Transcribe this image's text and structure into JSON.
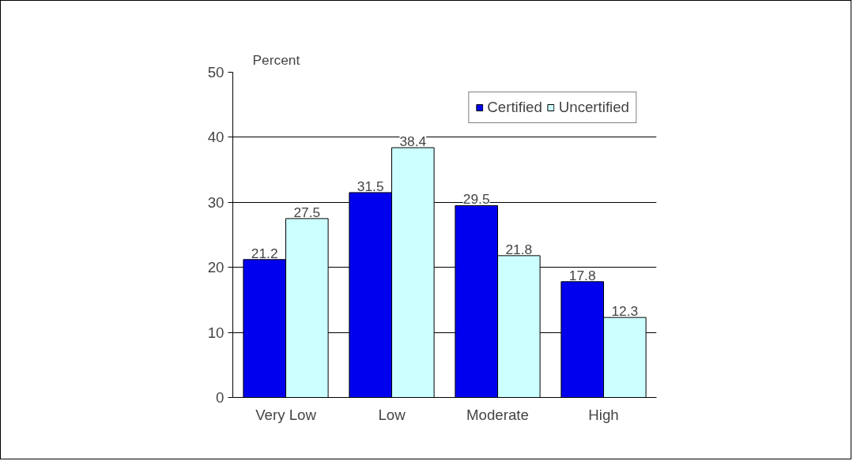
{
  "chart_data": {
    "type": "bar",
    "ylabel": "Percent",
    "categories": [
      "Very Low",
      "Low",
      "Moderate",
      "High"
    ],
    "series": [
      {
        "name": "Certified",
        "color": "#0000ee",
        "values": [
          21.2,
          31.5,
          29.5,
          17.8
        ]
      },
      {
        "name": "Uncertified",
        "color": "#ccffff",
        "values": [
          27.5,
          38.4,
          21.8,
          12.3
        ]
      }
    ],
    "ylim": [
      0,
      50
    ],
    "yticks": [
      0,
      10,
      20,
      30,
      40,
      50
    ],
    "grid": "y",
    "legend": "top right",
    "data_labels": true
  }
}
